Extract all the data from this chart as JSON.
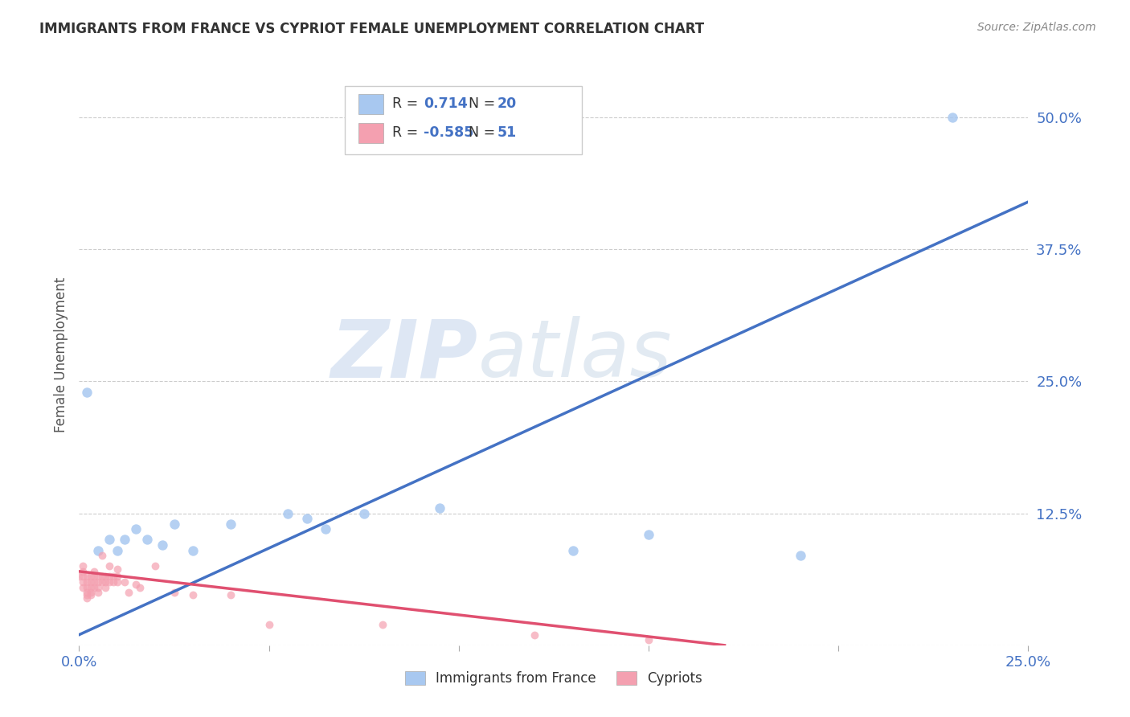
{
  "title": "IMMIGRANTS FROM FRANCE VS CYPRIOT FEMALE UNEMPLOYMENT CORRELATION CHART",
  "source": "Source: ZipAtlas.com",
  "ylabel_label": "Female Unemployment",
  "x_min": 0.0,
  "x_max": 0.25,
  "y_min": 0.0,
  "y_max": 0.55,
  "x_ticks": [
    0.0,
    0.05,
    0.1,
    0.15,
    0.2,
    0.25
  ],
  "x_tick_labels": [
    "0.0%",
    "",
    "",
    "",
    "",
    "25.0%"
  ],
  "y_ticks": [
    0.0,
    0.125,
    0.25,
    0.375,
    0.5
  ],
  "y_tick_labels": [
    "",
    "12.5%",
    "25.0%",
    "37.5%",
    "50.0%"
  ],
  "legend_blue_r": "0.714",
  "legend_blue_n": "20",
  "legend_pink_r": "-0.585",
  "legend_pink_n": "51",
  "blue_scatter_color": "#a8c8f0",
  "pink_scatter_color": "#f4a0b0",
  "blue_line_color": "#4472c4",
  "pink_line_color": "#e05070",
  "watermark_zip": "ZIP",
  "watermark_atlas": "atlas",
  "blue_points": [
    [
      0.002,
      0.24
    ],
    [
      0.005,
      0.09
    ],
    [
      0.008,
      0.1
    ],
    [
      0.01,
      0.09
    ],
    [
      0.012,
      0.1
    ],
    [
      0.015,
      0.11
    ],
    [
      0.018,
      0.1
    ],
    [
      0.022,
      0.095
    ],
    [
      0.025,
      0.115
    ],
    [
      0.03,
      0.09
    ],
    [
      0.04,
      0.115
    ],
    [
      0.055,
      0.125
    ],
    [
      0.06,
      0.12
    ],
    [
      0.065,
      0.11
    ],
    [
      0.075,
      0.125
    ],
    [
      0.095,
      0.13
    ],
    [
      0.13,
      0.09
    ],
    [
      0.15,
      0.105
    ],
    [
      0.19,
      0.085
    ],
    [
      0.23,
      0.5
    ]
  ],
  "pink_points": [
    [
      0.0,
      0.065
    ],
    [
      0.001,
      0.065
    ],
    [
      0.001,
      0.07
    ],
    [
      0.001,
      0.075
    ],
    [
      0.001,
      0.06
    ],
    [
      0.001,
      0.055
    ],
    [
      0.002,
      0.065
    ],
    [
      0.002,
      0.06
    ],
    [
      0.002,
      0.055
    ],
    [
      0.002,
      0.05
    ],
    [
      0.002,
      0.048
    ],
    [
      0.002,
      0.045
    ],
    [
      0.003,
      0.065
    ],
    [
      0.003,
      0.06
    ],
    [
      0.003,
      0.055
    ],
    [
      0.003,
      0.05
    ],
    [
      0.003,
      0.048
    ],
    [
      0.004,
      0.065
    ],
    [
      0.004,
      0.06
    ],
    [
      0.004,
      0.07
    ],
    [
      0.004,
      0.055
    ],
    [
      0.005,
      0.065
    ],
    [
      0.005,
      0.06
    ],
    [
      0.005,
      0.055
    ],
    [
      0.005,
      0.05
    ],
    [
      0.006,
      0.065
    ],
    [
      0.006,
      0.06
    ],
    [
      0.006,
      0.085
    ],
    [
      0.007,
      0.065
    ],
    [
      0.007,
      0.06
    ],
    [
      0.007,
      0.055
    ],
    [
      0.008,
      0.065
    ],
    [
      0.008,
      0.06
    ],
    [
      0.008,
      0.075
    ],
    [
      0.009,
      0.065
    ],
    [
      0.009,
      0.06
    ],
    [
      0.01,
      0.065
    ],
    [
      0.01,
      0.06
    ],
    [
      0.01,
      0.072
    ],
    [
      0.012,
      0.06
    ],
    [
      0.013,
      0.05
    ],
    [
      0.015,
      0.058
    ],
    [
      0.016,
      0.055
    ],
    [
      0.02,
      0.075
    ],
    [
      0.025,
      0.05
    ],
    [
      0.03,
      0.048
    ],
    [
      0.04,
      0.048
    ],
    [
      0.05,
      0.02
    ],
    [
      0.08,
      0.02
    ],
    [
      0.12,
      0.01
    ],
    [
      0.15,
      0.005
    ]
  ],
  "blue_line_x": [
    0.0,
    0.25
  ],
  "blue_line_y": [
    0.01,
    0.42
  ],
  "pink_line_x": [
    0.0,
    0.17
  ],
  "pink_line_y": [
    0.07,
    0.0
  ],
  "background_color": "#ffffff",
  "grid_color": "#cccccc",
  "tick_color_x": "#4472c4",
  "tick_color_y": "#4472c4",
  "legend_label_blue": "Immigrants from France",
  "legend_label_pink": "Cypriots"
}
